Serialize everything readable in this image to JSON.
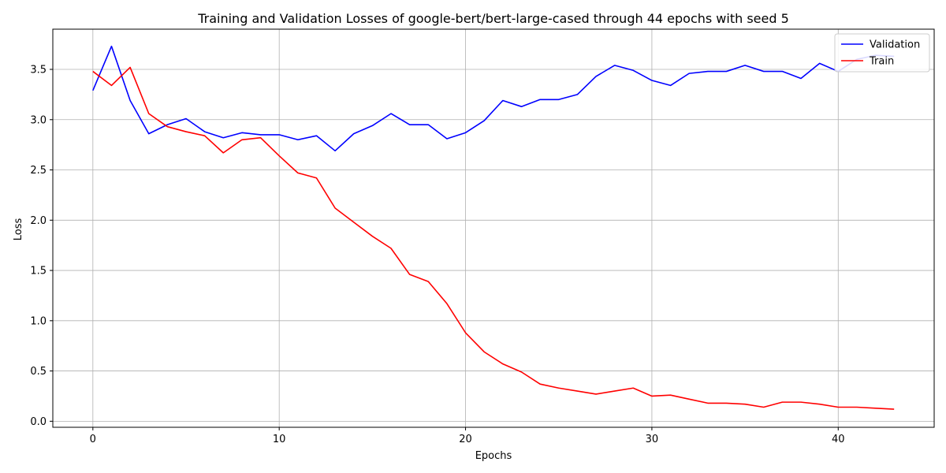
{
  "chart_data": {
    "type": "line",
    "title": "Training and Validation Losses of google-bert/bert-large-cased through 44 epochs with seed 5",
    "xlabel": "Epochs",
    "ylabel": "Loss",
    "xlim": [
      -2.15,
      45.15
    ],
    "ylim": [
      -0.06,
      3.9
    ],
    "xticks": [
      0,
      10,
      20,
      30,
      40
    ],
    "xtick_labels": [
      "0",
      "10",
      "20",
      "30",
      "40"
    ],
    "yticks": [
      0.0,
      0.5,
      1.0,
      1.5,
      2.0,
      2.5,
      3.0,
      3.5
    ],
    "ytick_labels": [
      "0.0",
      "0.5",
      "1.0",
      "1.5",
      "2.0",
      "2.5",
      "3.0",
      "3.5"
    ],
    "grid": true,
    "legend_position": "top-right",
    "series": [
      {
        "name": "Validation",
        "color": "#0000ff",
        "x": [
          0,
          1,
          2,
          3,
          4,
          5,
          6,
          7,
          8,
          9,
          10,
          11,
          12,
          13,
          14,
          15,
          16,
          17,
          18,
          19,
          20,
          21,
          22,
          23,
          24,
          25,
          26,
          27,
          28,
          29,
          30,
          31,
          32,
          33,
          34,
          35,
          36,
          37,
          38,
          39,
          40,
          41,
          42,
          43
        ],
        "values": [
          3.29,
          3.73,
          3.19,
          2.86,
          2.95,
          3.01,
          2.88,
          2.82,
          2.87,
          2.85,
          2.85,
          2.8,
          2.84,
          2.69,
          2.86,
          2.94,
          3.06,
          2.95,
          2.95,
          2.81,
          2.87,
          2.99,
          3.19,
          3.13,
          3.2,
          3.2,
          3.25,
          3.43,
          3.54,
          3.49,
          3.39,
          3.34,
          3.46,
          3.48,
          3.48,
          3.54,
          3.48,
          3.48,
          3.41,
          3.56,
          3.48,
          3.6,
          3.64,
          3.63
        ]
      },
      {
        "name": "Train",
        "color": "#ff0000",
        "x": [
          0,
          1,
          2,
          3,
          4,
          5,
          6,
          7,
          8,
          9,
          10,
          11,
          12,
          13,
          14,
          15,
          16,
          17,
          18,
          19,
          20,
          21,
          22,
          23,
          24,
          25,
          26,
          27,
          28,
          29,
          30,
          31,
          32,
          33,
          34,
          35,
          36,
          37,
          38,
          39,
          40,
          41,
          42,
          43
        ],
        "values": [
          3.48,
          3.34,
          3.52,
          3.06,
          2.93,
          2.88,
          2.84,
          2.67,
          2.8,
          2.82,
          2.64,
          2.47,
          2.42,
          2.12,
          1.98,
          1.84,
          1.72,
          1.46,
          1.39,
          1.17,
          0.88,
          0.69,
          0.57,
          0.49,
          0.37,
          0.33,
          0.3,
          0.27,
          0.3,
          0.33,
          0.25,
          0.26,
          0.22,
          0.18,
          0.18,
          0.17,
          0.14,
          0.19,
          0.19,
          0.17,
          0.14,
          0.14,
          0.13,
          0.12
        ]
      }
    ]
  }
}
